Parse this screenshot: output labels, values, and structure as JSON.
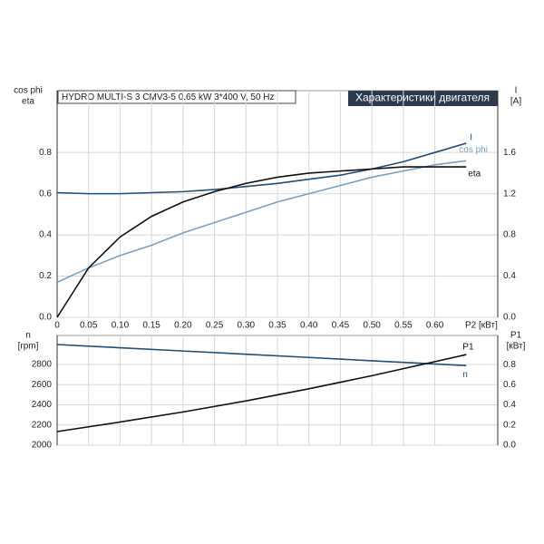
{
  "chart_data": [
    {
      "type": "line",
      "title": "HYDRO MULTI-S 3 CMV3-5   0.65 kW   3*400 V, 50 Hz",
      "subtitle": "Характеристики двигателя",
      "ylabel": [
        "cos phi",
        "eta"
      ],
      "y2label": [
        "I",
        "[A]"
      ],
      "xlabel": "P2 [кВт]",
      "x": [
        0,
        0.05,
        0.1,
        0.15,
        0.2,
        0.25,
        0.3,
        0.35,
        0.4,
        0.45,
        0.5,
        0.55,
        0.6,
        0.65
      ],
      "series": [
        {
          "name": "I",
          "color": "#1f4e79",
          "axis": "y2",
          "values": [
            1.21,
            1.2,
            1.2,
            1.21,
            1.22,
            1.24,
            1.27,
            1.3,
            1.34,
            1.38,
            1.44,
            1.51,
            1.6,
            1.69
          ]
        },
        {
          "name": "cos phi",
          "color": "#7b9fc2",
          "values": [
            0.17,
            0.24,
            0.3,
            0.35,
            0.41,
            0.46,
            0.51,
            0.56,
            0.6,
            0.64,
            0.68,
            0.71,
            0.74,
            0.76
          ]
        },
        {
          "name": "eta",
          "color": "#111111",
          "values": [
            0,
            0.24,
            0.39,
            0.49,
            0.56,
            0.61,
            0.65,
            0.68,
            0.7,
            0.71,
            0.72,
            0.73,
            0.73,
            0.73
          ]
        }
      ],
      "xlim": [
        0,
        0.7
      ],
      "xticks": [
        0,
        0.05,
        {
          "value": 0.1,
          "label": "0.10"
        },
        0.15,
        {
          "value": 0.2,
          "label": "0.20"
        },
        0.25,
        {
          "value": 0.3,
          "label": "0.30"
        },
        0.35,
        {
          "value": 0.4,
          "label": "0.40"
        },
        0.45,
        {
          "value": 0.5,
          "label": "0.50"
        },
        0.55,
        {
          "value": 0.6,
          "label": "0.60"
        }
      ],
      "ylim": [
        0,
        1.1
      ],
      "yticks": [
        {
          "value": 0,
          "label": "0.0"
        },
        0.2,
        0.4,
        0.6,
        0.8
      ],
      "y2lim": [
        0,
        2.2
      ],
      "y2ticks": [
        {
          "value": 0,
          "label": "0.0"
        },
        0.4,
        0.8,
        1.2,
        1.6
      ],
      "grid": true
    },
    {
      "type": "line",
      "ylabel": [
        "n",
        "[rpm]"
      ],
      "y2label": [
        "P1",
        "[кВт]"
      ],
      "x": [
        0,
        0.1,
        0.2,
        0.3,
        0.4,
        0.5,
        0.6,
        0.65
      ],
      "series": [
        {
          "name": "n",
          "color": "#1f4e79",
          "values": [
            2998,
            2966,
            2934,
            2902,
            2870,
            2837,
            2805,
            2790
          ]
        },
        {
          "name": "P1",
          "color": "#111111",
          "axis": "y2",
          "values": [
            0.135,
            0.23,
            0.33,
            0.44,
            0.56,
            0.69,
            0.83,
            0.9
          ]
        }
      ],
      "xlim": [
        0,
        0.7
      ],
      "xticks": [
        0,
        0.05,
        0.1,
        0.15,
        0.2,
        0.25,
        0.3,
        0.35,
        0.4,
        0.45,
        0.5,
        0.55,
        0.6
      ],
      "ylim": [
        2000,
        3088
      ],
      "yticks": [
        2000,
        2200,
        2400,
        2600,
        2800
      ],
      "y2lim": [
        0,
        1.09
      ],
      "y2ticks": [
        {
          "value": 0,
          "label": "0.0"
        },
        0.2,
        0.4,
        0.6,
        0.8
      ],
      "grid": true
    }
  ]
}
